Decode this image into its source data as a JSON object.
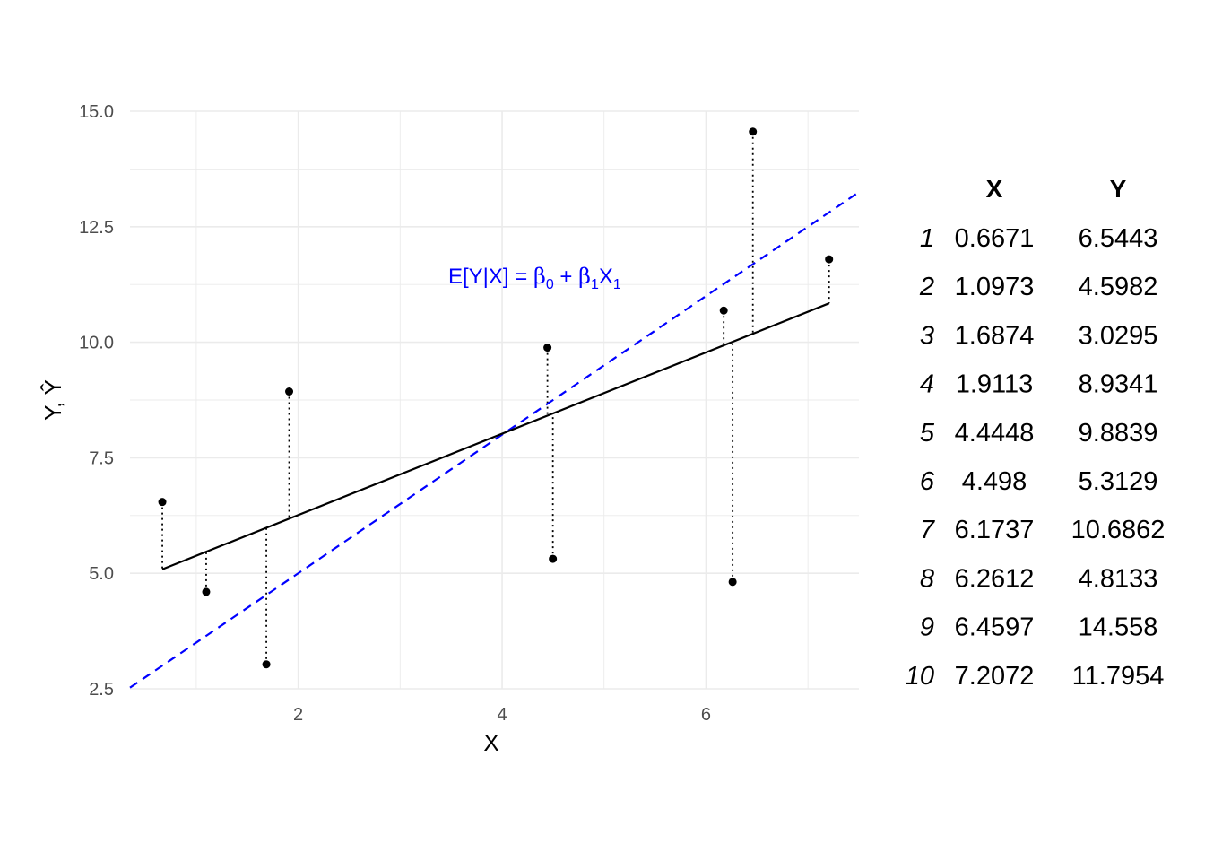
{
  "chart_data": {
    "type": "scatter",
    "xlabel": "X",
    "ylabel": "Y, Ŷ",
    "xlim": [
      0.35,
      7.5
    ],
    "ylim": [
      2.5,
      15.0
    ],
    "x_ticks": [
      2,
      4,
      6
    ],
    "y_ticks": [
      "2.5",
      "5.0",
      "7.5",
      "10.0",
      "12.5",
      "15.0"
    ],
    "grid": true,
    "points": {
      "x": [
        0.6671,
        1.0973,
        1.6874,
        1.9113,
        4.4448,
        4.498,
        6.1737,
        6.2612,
        6.4597,
        7.2072
      ],
      "y": [
        6.5443,
        4.5982,
        3.0295,
        8.9341,
        9.8839,
        5.3129,
        10.6862,
        4.8133,
        14.558,
        11.7954
      ]
    },
    "fitted_line": {
      "intercept": 4.5,
      "slope": 0.88,
      "style": "solid",
      "color": "#000000"
    },
    "true_line": {
      "intercept": 2.0,
      "slope": 1.5,
      "style": "dashed",
      "color": "#0000ff"
    },
    "residuals": "dotted",
    "annotation": {
      "lhs": "E[Y|X] = ",
      "b0": "β",
      "b0_sub": "0",
      "plus": " + ",
      "b1": "β",
      "b1_sub": "1",
      "x1": "X",
      "x1_sub": "1"
    },
    "table": {
      "headers": [
        "X",
        "Y"
      ],
      "rows": [
        {
          "i": "1",
          "x": "0.6671",
          "y": "6.5443"
        },
        {
          "i": "2",
          "x": "1.0973",
          "y": "4.5982"
        },
        {
          "i": "3",
          "x": "1.6874",
          "y": "3.0295"
        },
        {
          "i": "4",
          "x": "1.9113",
          "y": "8.9341"
        },
        {
          "i": "5",
          "x": "4.4448",
          "y": "9.8839"
        },
        {
          "i": "6",
          "x": "4.498",
          "y": "5.3129"
        },
        {
          "i": "7",
          "x": "6.1737",
          "y": "10.6862"
        },
        {
          "i": "8",
          "x": "6.2612",
          "y": "4.8133"
        },
        {
          "i": "9",
          "x": "6.4597",
          "y": "14.558"
        },
        {
          "i": "10",
          "x": "7.2072",
          "y": "11.7954"
        }
      ]
    }
  }
}
